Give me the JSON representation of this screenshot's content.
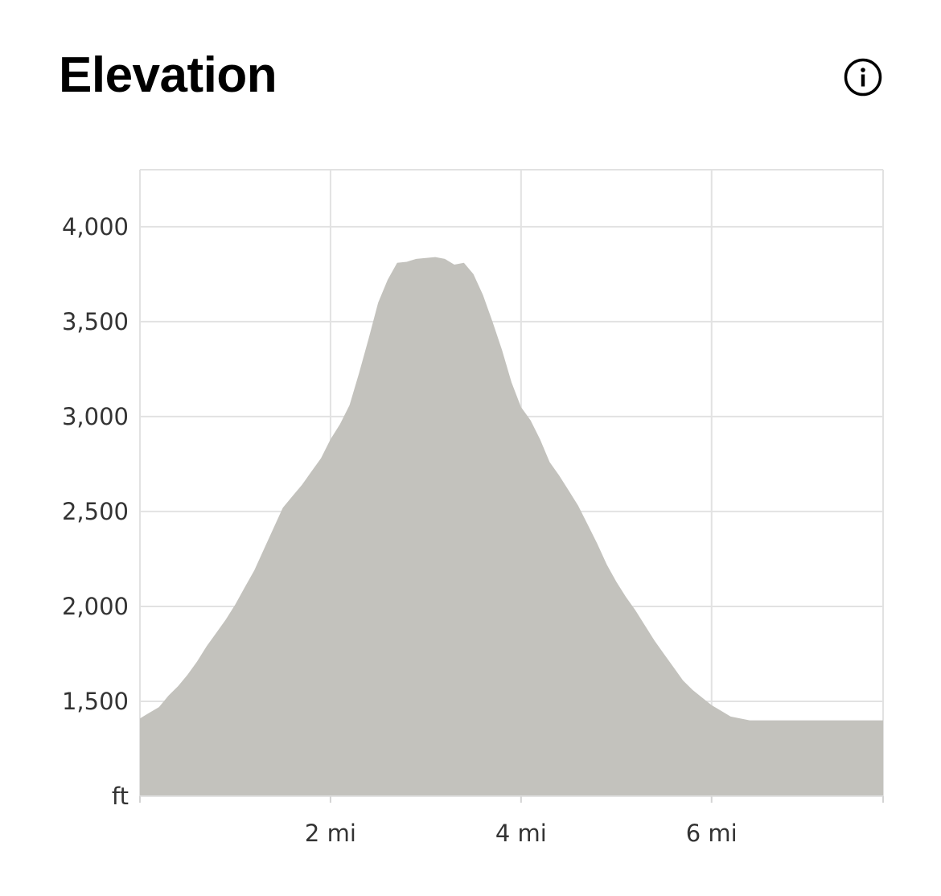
{
  "header": {
    "title": "Elevation",
    "info_icon": "info-circle-icon"
  },
  "chart_data": {
    "type": "area",
    "title": "Elevation",
    "xlabel": "",
    "ylabel": "",
    "y_unit_label": "ft",
    "x_unit": "mi",
    "x_ticks": [
      2,
      4,
      6
    ],
    "x_tick_labels": [
      "2 mi",
      "4 mi",
      "6 mi"
    ],
    "y_ticks": [
      1500,
      2000,
      2500,
      3000,
      3500,
      4000
    ],
    "y_tick_labels": [
      "1,500",
      "2,000",
      "2,500",
      "3,000",
      "3,500",
      "4,000"
    ],
    "xlim": [
      0,
      7.8
    ],
    "ylim": [
      1000,
      4300
    ],
    "grid": true,
    "fill_color": "#c3c2bd",
    "series": [
      {
        "x": [
          0.0,
          0.1,
          0.2,
          0.3,
          0.4,
          0.5,
          0.6,
          0.7,
          0.8,
          0.9,
          1.0,
          1.1,
          1.2,
          1.3,
          1.4,
          1.5,
          1.6,
          1.7,
          1.8,
          1.9,
          2.0,
          2.1,
          2.2,
          2.3,
          2.4,
          2.5,
          2.6,
          2.7,
          2.8,
          2.9,
          3.0,
          3.1,
          3.2,
          3.3,
          3.4,
          3.5,
          3.6,
          3.7,
          3.8,
          3.9,
          4.0,
          4.1,
          4.2,
          4.3,
          4.4,
          4.5,
          4.6,
          4.7,
          4.8,
          4.9,
          5.0,
          5.1,
          5.2,
          5.3,
          5.4,
          5.5,
          5.6,
          5.7,
          5.8,
          5.9,
          6.0,
          6.1,
          6.2,
          6.3,
          6.4,
          6.5,
          6.6,
          6.7,
          6.8,
          6.9,
          7.0,
          7.1,
          7.2,
          7.3,
          7.4,
          7.5,
          7.6,
          7.7,
          7.8
        ],
        "y": [
          1410,
          1440,
          1470,
          1530,
          1580,
          1640,
          1710,
          1790,
          1860,
          1930,
          2010,
          2100,
          2190,
          2300,
          2410,
          2520,
          2580,
          2640,
          2710,
          2780,
          2880,
          2960,
          3060,
          3230,
          3410,
          3600,
          3720,
          3810,
          3815,
          3830,
          3835,
          3840,
          3830,
          3800,
          3810,
          3750,
          3640,
          3500,
          3350,
          3180,
          3050,
          2980,
          2880,
          2760,
          2690,
          2610,
          2530,
          2430,
          2330,
          2220,
          2130,
          2050,
          1980,
          1900,
          1820,
          1750,
          1680,
          1610,
          1560,
          1520,
          1480,
          1450,
          1420,
          1410,
          1400,
          1400,
          1400,
          1400,
          1400,
          1400,
          1400,
          1400,
          1400,
          1400,
          1400,
          1400,
          1400,
          1400,
          1400
        ]
      }
    ]
  }
}
